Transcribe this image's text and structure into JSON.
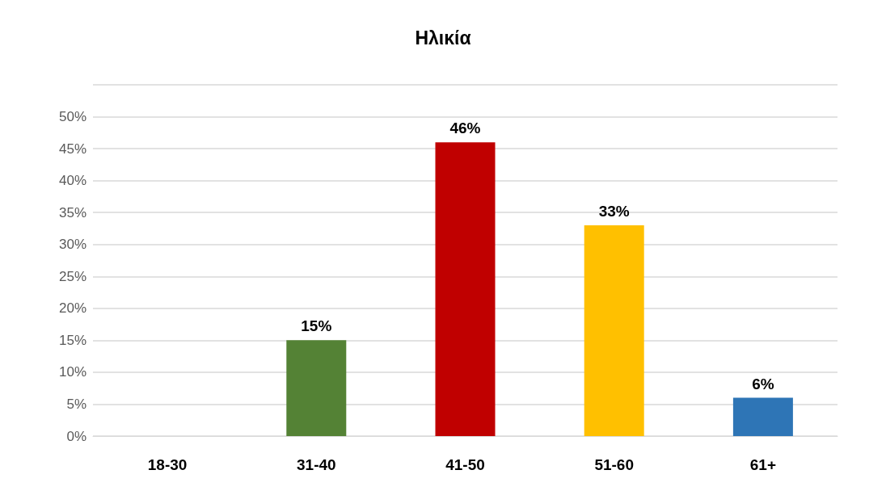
{
  "chart_data": {
    "type": "bar",
    "title": "Ηλικία",
    "categories": [
      "18-30",
      "31-40",
      "41-50",
      "51-60",
      "61+"
    ],
    "values": [
      0,
      15,
      46,
      33,
      6
    ],
    "colors": [
      "#548235",
      "#548235",
      "#c00000",
      "#ffc000",
      "#2e75b6"
    ],
    "value_labels": [
      null,
      "15%",
      "46%",
      "33%",
      "6%"
    ],
    "ylim": [
      0,
      55
    ],
    "yticks": [
      {
        "value": 0,
        "label": "0%"
      },
      {
        "value": 5,
        "label": "5%"
      },
      {
        "value": 10,
        "label": "10%"
      },
      {
        "value": 15,
        "label": "15%"
      },
      {
        "value": 20,
        "label": "20%"
      },
      {
        "value": 25,
        "label": "25%"
      },
      {
        "value": 30,
        "label": "30%"
      },
      {
        "value": 35,
        "label": "35%"
      },
      {
        "value": 40,
        "label": "40%"
      },
      {
        "value": 45,
        "label": "45%"
      },
      {
        "value": 50,
        "label": "50%"
      },
      {
        "value": 55,
        "label": null
      }
    ],
    "grid": "y"
  }
}
